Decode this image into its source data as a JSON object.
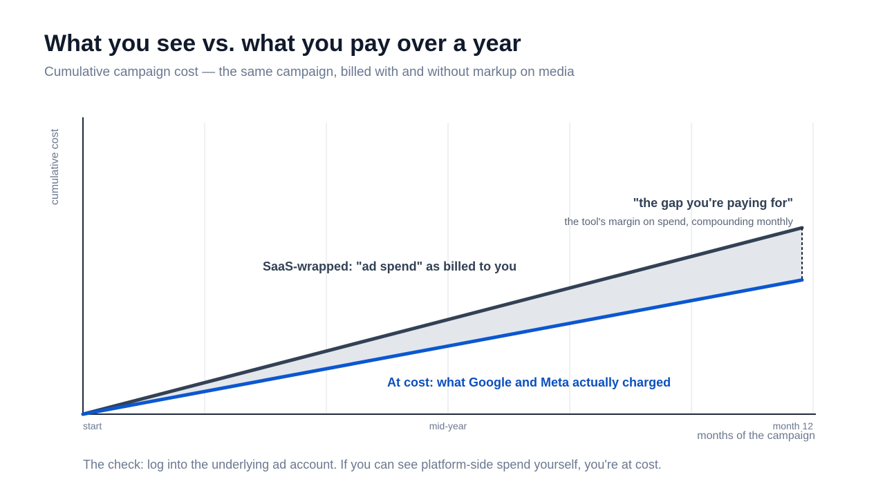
{
  "header": {
    "title": "What you see vs. what you pay over a year",
    "subtitle": "Cumulative campaign cost — the same campaign, billed with and without markup on media"
  },
  "chart_data": {
    "type": "line",
    "x_ticks": [
      "start",
      "mid-year",
      "month 12"
    ],
    "xlabel": "months of the campaign",
    "ylabel": "cumulative cost",
    "xlim": [
      0,
      12
    ],
    "grid": "vertical",
    "series": [
      {
        "name": "SaaS-wrapped: \"ad spend\" as billed to you",
        "color": "#334155",
        "x": [
          0,
          12
        ],
        "y": [
          0,
          100
        ]
      },
      {
        "name": "At cost: what Google and Meta actually charged",
        "color": "#0b57d0",
        "x": [
          0,
          12
        ],
        "y": [
          0,
          72
        ]
      }
    ],
    "annotation": {
      "title": "\"the gap you're paying for\"",
      "detail": "the tool's margin on spend, compounding monthly"
    },
    "colors": {
      "fill": "#e3e6eb",
      "axis": "#1e293b",
      "grid": "#eef0f3"
    }
  },
  "footer": {
    "note": "The check: log into the underlying ad account. If you can see platform-side spend yourself, you're at cost."
  }
}
